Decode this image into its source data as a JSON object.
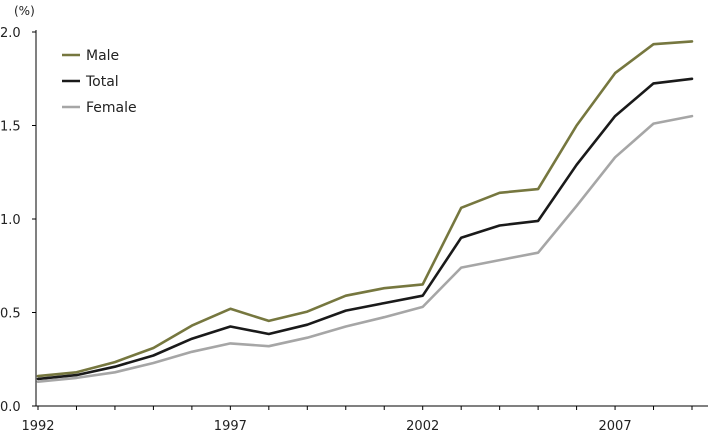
{
  "chart_data": {
    "type": "line",
    "title": "",
    "xlabel": "",
    "ylabel": "(%)",
    "ylim": [
      0,
      2.0
    ],
    "xlim": [
      1992,
      2009
    ],
    "yticks": [
      "0.0",
      "0.5",
      "1.0",
      "1.5",
      "2.0"
    ],
    "xtick_labels": [
      "1992",
      "1997",
      "2002",
      "2007"
    ],
    "grid": false,
    "legend_position": "top-left",
    "x": [
      1992,
      1993,
      1994,
      1995,
      1996,
      1997,
      1998,
      1999,
      2000,
      2001,
      2002,
      2003,
      2004,
      2005,
      2006,
      2007,
      2008,
      2009
    ],
    "series": [
      {
        "name": "Male",
        "color": "#76773f",
        "values": [
          0.16,
          0.18,
          0.235,
          0.31,
          0.43,
          0.52,
          0.455,
          0.505,
          0.59,
          0.63,
          0.65,
          1.06,
          1.14,
          1.16,
          1.5,
          1.78,
          1.935,
          1.95
        ]
      },
      {
        "name": "Total",
        "color": "#1a1a1a",
        "values": [
          0.145,
          0.165,
          0.21,
          0.27,
          0.36,
          0.425,
          0.385,
          0.435,
          0.51,
          0.55,
          0.59,
          0.9,
          0.965,
          0.99,
          1.29,
          1.55,
          1.725,
          1.75
        ]
      },
      {
        "name": "Female",
        "color": "#a6a6a6",
        "values": [
          0.13,
          0.15,
          0.18,
          0.23,
          0.29,
          0.335,
          0.32,
          0.365,
          0.425,
          0.475,
          0.53,
          0.74,
          0.78,
          0.82,
          1.07,
          1.33,
          1.51,
          1.55
        ]
      }
    ]
  }
}
